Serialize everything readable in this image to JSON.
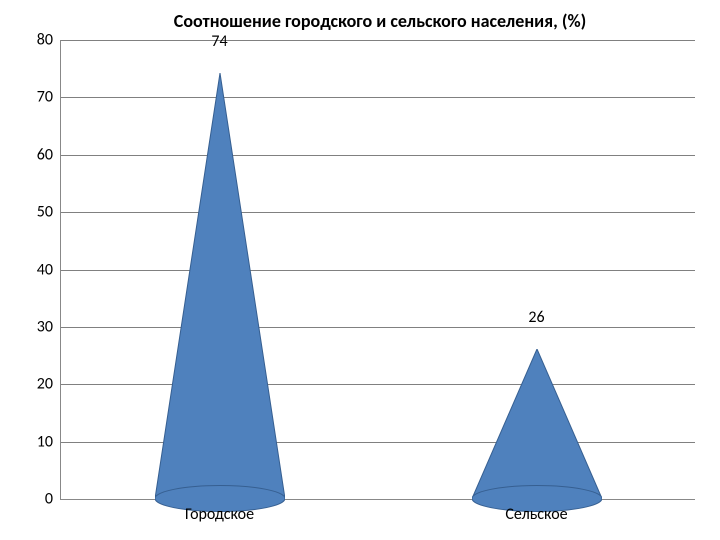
{
  "chart": {
    "type": "cone-bar",
    "title": "Соотношение городского и сельского населения, (%)",
    "title_fontsize": 18,
    "title_color": "#000000",
    "categories": [
      "Городское",
      "Сельское"
    ],
    "values": [
      74,
      26
    ],
    "value_labels": [
      "74",
      "26"
    ],
    "cone_fill": "#4f81bd",
    "cone_stroke": "#365f91",
    "cone_base_width": 130,
    "cat_positions_pct": [
      25,
      75
    ],
    "ylim": [
      0,
      80
    ],
    "ytick_step": 10,
    "yticks": [
      0,
      10,
      20,
      30,
      40,
      50,
      60,
      70,
      80
    ],
    "grid_color": "#808080",
    "background_color": "#ffffff",
    "tick_fontsize": 16,
    "label_fontsize": 16,
    "cat_fontsize": 16
  }
}
